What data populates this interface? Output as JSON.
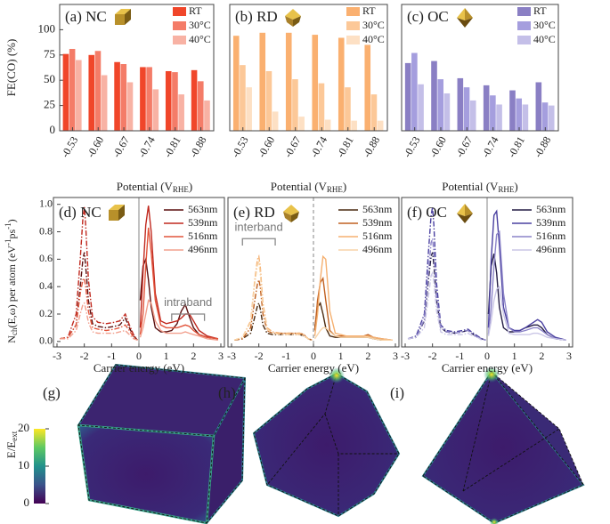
{
  "chart_data": [
    {
      "type": "bar",
      "title": "(a) NC",
      "ylabel": "FE(CO) (%)",
      "xlabel": [
        "Potential (V",
        "RHE",
        ")"
      ],
      "categories": [
        "-0.53",
        "-0.60",
        "-0.67",
        "-0.74",
        "-0.81",
        "-0.88"
      ],
      "series": [
        {
          "name": "RT",
          "color": "#f0462a",
          "values": [
            76,
            75,
            68,
            63,
            59,
            60
          ]
        },
        {
          "name": "30°C",
          "color": "#f47c68",
          "values": [
            81,
            79,
            66,
            63,
            58,
            49
          ]
        },
        {
          "name": "40°C",
          "color": "#f8b2a4",
          "values": [
            70,
            55,
            48,
            41,
            36,
            30
          ]
        }
      ],
      "ylim": [
        0,
        125
      ],
      "yticks": [
        0,
        25,
        50,
        75,
        100
      ],
      "legend": "upper right"
    },
    {
      "type": "bar",
      "title": "(b) RD",
      "xlabel": [
        "Potential (V",
        "RHE",
        ")"
      ],
      "categories": [
        "-0.53",
        "-0.60",
        "-0.67",
        "-0.74",
        "-0.81",
        "-0.88"
      ],
      "series": [
        {
          "name": "RT",
          "color": "#fab070",
          "values": [
            94,
            97,
            97,
            95,
            92,
            85
          ]
        },
        {
          "name": "30°C",
          "color": "#fcc898",
          "values": [
            65,
            59,
            51,
            47,
            43,
            36
          ]
        },
        {
          "name": "40°C",
          "color": "#fde0c4",
          "values": [
            43,
            19,
            14,
            11,
            10,
            10
          ]
        }
      ],
      "ylim": [
        0,
        125
      ],
      "legend": "upper right"
    },
    {
      "type": "bar",
      "title": "(c) OC",
      "xlabel": [
        "Potential (V",
        "RHE",
        ")"
      ],
      "categories": [
        "-0.53",
        "-0.60",
        "-0.67",
        "-0.74",
        "-0.81",
        "-0.88"
      ],
      "series": [
        {
          "name": "RT",
          "color": "#8a7fc4",
          "values": [
            67,
            69,
            52,
            45,
            40,
            48
          ]
        },
        {
          "name": "30°C",
          "color": "#a59ede",
          "values": [
            77,
            51,
            43,
            35,
            32,
            28
          ]
        },
        {
          "name": "40°C",
          "color": "#c4bfe8",
          "values": [
            46,
            37,
            30,
            26,
            26,
            25
          ]
        }
      ],
      "ylim": [
        0,
        125
      ],
      "legend": "upper right"
    },
    {
      "type": "line",
      "title": "(d) NC",
      "annotation": "intraband",
      "xlabel": "Carrier energy (eV)",
      "ylabel": [
        {
          "text": "N"
        },
        {
          "text": "ch",
          "shift": "sub"
        },
        {
          "text": "(E,ω) per atom (eV"
        },
        {
          "text": "-1",
          "shift": "super"
        },
        {
          "text": "ps"
        },
        {
          "text": "-1",
          "shift": "super"
        },
        {
          "text": ")"
        }
      ],
      "x_holes": [
        -2.9,
        -2.6,
        -2.3,
        -2.15,
        -2.05,
        -2.0,
        -1.95,
        -1.85,
        -1.7,
        -1.5,
        -1.2,
        -0.9,
        -0.7,
        -0.5,
        -0.35,
        -0.2,
        -0.05
      ],
      "x_electrons": [
        0.05,
        0.15,
        0.25,
        0.35,
        0.45,
        0.6,
        0.8,
        1.0,
        1.2,
        1.4,
        1.55,
        1.7,
        1.85,
        2.0,
        2.2,
        2.5,
        2.9
      ],
      "series": [
        {
          "name": "563nm",
          "color": "#5a0f0f",
          "holes": [
            0.02,
            0.03,
            0.12,
            0.4,
            0.6,
            0.65,
            0.55,
            0.3,
            0.13,
            0.11,
            0.1,
            0.11,
            0.12,
            0.17,
            0.1,
            0.04,
            0.01
          ],
          "electrons": [
            0.3,
            0.55,
            0.6,
            0.45,
            0.25,
            0.1,
            0.07,
            0.07,
            0.08,
            0.13,
            0.22,
            0.27,
            0.18,
            0.1,
            0.05,
            0.03,
            0.02
          ]
        },
        {
          "name": "539nm",
          "color": "#c0281e",
          "holes": [
            0.02,
            0.03,
            0.2,
            0.6,
            0.9,
            0.98,
            0.85,
            0.45,
            0.18,
            0.14,
            0.13,
            0.14,
            0.15,
            0.2,
            0.12,
            0.05,
            0.01
          ],
          "electrons": [
            0.1,
            0.5,
            0.85,
            0.99,
            0.8,
            0.35,
            0.15,
            0.13,
            0.14,
            0.15,
            0.17,
            0.2,
            0.2,
            0.15,
            0.08,
            0.04,
            0.02
          ]
        },
        {
          "name": "516nm",
          "color": "#e2553c",
          "holes": [
            0.02,
            0.03,
            0.12,
            0.35,
            0.45,
            0.46,
            0.4,
            0.22,
            0.1,
            0.09,
            0.08,
            0.09,
            0.1,
            0.12,
            0.08,
            0.03,
            0.01
          ],
          "electrons": [
            0.05,
            0.2,
            0.55,
            0.83,
            0.65,
            0.3,
            0.12,
            0.1,
            0.1,
            0.1,
            0.11,
            0.12,
            0.11,
            0.08,
            0.05,
            0.03,
            0.02
          ]
        },
        {
          "name": "496nm",
          "color": "#f2a08e",
          "holes": [
            0.02,
            0.02,
            0.08,
            0.2,
            0.27,
            0.28,
            0.24,
            0.14,
            0.07,
            0.06,
            0.06,
            0.06,
            0.07,
            0.08,
            0.05,
            0.02,
            0.01
          ],
          "electrons": [
            0.03,
            0.1,
            0.2,
            0.3,
            0.28,
            0.15,
            0.08,
            0.06,
            0.06,
            0.06,
            0.06,
            0.07,
            0.06,
            0.05,
            0.04,
            0.02,
            0.01
          ]
        }
      ],
      "xlim": [
        -3,
        3
      ],
      "xticks": [
        -3,
        -2,
        -1,
        0,
        1,
        2,
        3
      ],
      "ylim": [
        -0.04,
        1.05
      ],
      "yticks": [
        {
          "value": 0,
          "label": "0.0"
        },
        {
          "value": 0.2,
          "label": "0.2"
        },
        {
          "value": 0.4,
          "label": "0.4"
        },
        {
          "value": 0.6,
          "label": "0.6"
        },
        {
          "value": 0.8,
          "label": "0.8"
        },
        {
          "value": 1,
          "label": "1.0"
        }
      ],
      "legend": "upper right"
    },
    {
      "type": "line",
      "title": "(e) RD",
      "annotation": "interband",
      "xlabel": "Carrier energy (eV)",
      "x_holes": [
        -2.9,
        -2.6,
        -2.3,
        -2.15,
        -2.05,
        -2.0,
        -1.95,
        -1.85,
        -1.7,
        -1.5,
        -1.2,
        -0.9,
        -0.7,
        -0.5,
        -0.35,
        -0.2,
        -0.05
      ],
      "x_electrons": [
        0.05,
        0.15,
        0.25,
        0.35,
        0.45,
        0.6,
        0.8,
        1.0,
        1.2,
        1.4,
        1.55,
        1.7,
        1.85,
        2.0,
        2.2,
        2.5,
        2.9
      ],
      "series": [
        {
          "name": "563nm",
          "color": "#4a2a10",
          "holes": [
            0.01,
            0.02,
            0.06,
            0.18,
            0.26,
            0.28,
            0.24,
            0.12,
            0.06,
            0.05,
            0.05,
            0.05,
            0.05,
            0.05,
            0.04,
            0.02,
            0.01
          ],
          "electrons": [
            0.1,
            0.25,
            0.28,
            0.2,
            0.1,
            0.04,
            0.03,
            0.03,
            0.03,
            0.03,
            0.03,
            0.03,
            0.03,
            0.03,
            0.02,
            0.01,
            0.01
          ]
        },
        {
          "name": "539nm",
          "color": "#c06020",
          "holes": [
            0.01,
            0.02,
            0.1,
            0.3,
            0.42,
            0.45,
            0.4,
            0.2,
            0.08,
            0.06,
            0.06,
            0.06,
            0.06,
            0.06,
            0.05,
            0.02,
            0.01
          ],
          "electrons": [
            0.08,
            0.3,
            0.43,
            0.46,
            0.3,
            0.08,
            0.04,
            0.04,
            0.04,
            0.04,
            0.04,
            0.04,
            0.04,
            0.05,
            0.03,
            0.02,
            0.01
          ]
        },
        {
          "name": "516nm",
          "color": "#f5b070",
          "holes": [
            0.01,
            0.03,
            0.15,
            0.45,
            0.6,
            0.62,
            0.55,
            0.28,
            0.1,
            0.07,
            0.06,
            0.06,
            0.06,
            0.06,
            0.05,
            0.02,
            0.01
          ],
          "electrons": [
            0.04,
            0.2,
            0.45,
            0.62,
            0.6,
            0.22,
            0.06,
            0.05,
            0.04,
            0.04,
            0.04,
            0.04,
            0.04,
            0.04,
            0.03,
            0.02,
            0.01
          ]
        },
        {
          "name": "496nm",
          "color": "#f8d4a8",
          "holes": [
            0.01,
            0.03,
            0.14,
            0.42,
            0.56,
            0.58,
            0.5,
            0.25,
            0.09,
            0.06,
            0.05,
            0.05,
            0.05,
            0.05,
            0.04,
            0.02,
            0.01
          ],
          "electrons": [
            0.02,
            0.05,
            0.08,
            0.1,
            0.1,
            0.07,
            0.04,
            0.03,
            0.03,
            0.03,
            0.03,
            0.03,
            0.03,
            0.03,
            0.02,
            0.01,
            0.01
          ]
        }
      ],
      "xlim": [
        -3,
        3
      ],
      "xticks": [
        -3,
        -2,
        -1,
        0,
        1,
        2,
        3
      ],
      "ylim": [
        -0.04,
        1.05
      ],
      "legend": "upper right"
    },
    {
      "type": "line",
      "title": "(f) OC",
      "xlabel": "Carrier energy (eV)",
      "x_holes": [
        -2.9,
        -2.6,
        -2.3,
        -2.15,
        -2.05,
        -2.0,
        -1.95,
        -1.85,
        -1.7,
        -1.5,
        -1.2,
        -0.9,
        -0.7,
        -0.5,
        -0.35,
        -0.2,
        -0.05
      ],
      "x_electrons": [
        0.05,
        0.15,
        0.25,
        0.35,
        0.45,
        0.6,
        0.8,
        1.0,
        1.2,
        1.4,
        1.55,
        1.7,
        1.85,
        2.0,
        2.2,
        2.5,
        2.9
      ],
      "series": [
        {
          "name": "563nm",
          "color": "#231c44",
          "holes": [
            0.02,
            0.03,
            0.15,
            0.45,
            0.62,
            0.65,
            0.56,
            0.3,
            0.1,
            0.07,
            0.06,
            0.07,
            0.08,
            0.05,
            0.03,
            0.02,
            0.01
          ],
          "electrons": [
            0.2,
            0.55,
            0.64,
            0.5,
            0.25,
            0.1,
            0.07,
            0.07,
            0.08,
            0.1,
            0.11,
            0.12,
            0.12,
            0.1,
            0.05,
            0.02,
            0.01
          ]
        },
        {
          "name": "539nm",
          "color": "#4a40a0",
          "holes": [
            0.02,
            0.04,
            0.2,
            0.65,
            0.92,
            0.98,
            0.85,
            0.42,
            0.12,
            0.08,
            0.07,
            0.08,
            0.09,
            0.06,
            0.04,
            0.02,
            0.01
          ],
          "electrons": [
            0.1,
            0.6,
            0.92,
            0.95,
            0.7,
            0.25,
            0.1,
            0.08,
            0.08,
            0.1,
            0.12,
            0.14,
            0.16,
            0.14,
            0.07,
            0.03,
            0.01
          ]
        },
        {
          "name": "516nm",
          "color": "#8c84c8",
          "holes": [
            0.02,
            0.03,
            0.16,
            0.5,
            0.72,
            0.75,
            0.65,
            0.32,
            0.1,
            0.07,
            0.06,
            0.07,
            0.08,
            0.05,
            0.03,
            0.02,
            0.01
          ],
          "electrons": [
            0.05,
            0.25,
            0.55,
            0.78,
            0.8,
            0.35,
            0.1,
            0.07,
            0.07,
            0.08,
            0.09,
            0.1,
            0.1,
            0.08,
            0.05,
            0.02,
            0.01
          ]
        },
        {
          "name": "496nm",
          "color": "#cac6e6",
          "holes": [
            0.02,
            0.03,
            0.1,
            0.33,
            0.48,
            0.5,
            0.43,
            0.22,
            0.07,
            0.05,
            0.05,
            0.05,
            0.06,
            0.04,
            0.03,
            0.01,
            0.01
          ],
          "electrons": [
            0.04,
            0.15,
            0.3,
            0.38,
            0.4,
            0.2,
            0.06,
            0.05,
            0.05,
            0.05,
            0.05,
            0.06,
            0.06,
            0.05,
            0.03,
            0.02,
            0.01
          ]
        }
      ],
      "xlim": [
        -3,
        3
      ],
      "xticks": [
        -3,
        -2,
        -1,
        0,
        1,
        2,
        3
      ],
      "ylim": [
        -0.04,
        1.05
      ],
      "legend": "upper right"
    }
  ],
  "field_maps": {
    "panels": [
      "(g)",
      "(h)",
      "(i)"
    ],
    "colorbar": {
      "label": [
        "E/E",
        "ext"
      ],
      "lim": [
        0,
        20
      ],
      "ticks": [
        0,
        10,
        20
      ]
    }
  }
}
